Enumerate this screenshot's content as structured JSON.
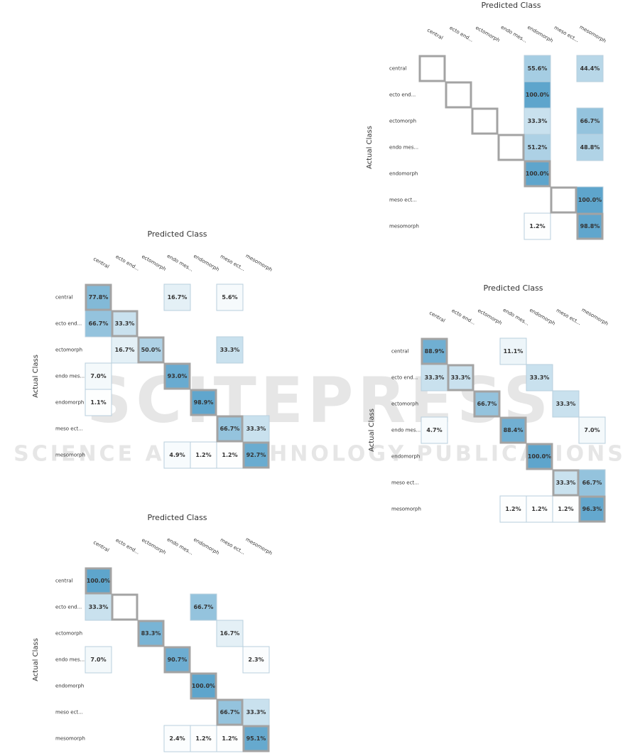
{
  "watermark": {
    "logo": "SCITEPRESS",
    "tagline": "SCIENCE AND TECHNOLOGY PUBLICATIONS"
  },
  "chart_data": [
    {
      "type": "heatmap",
      "title": "Predicted Class",
      "ylabel": "Actual Class",
      "color": "#5ea5cc",
      "x": [
        "central",
        "ecto end...",
        "ectomorph",
        "endo mes...",
        "endomorph",
        "meso ect...",
        "mesomorph"
      ],
      "y": [
        "central",
        "ecto end...",
        "ectomorph",
        "endo mes...",
        "endomorph",
        "meso ect...",
        "mesomorph"
      ],
      "values": [
        [
          null,
          null,
          null,
          null,
          55.6,
          null,
          44.4
        ],
        [
          null,
          null,
          null,
          null,
          100.0,
          null,
          null
        ],
        [
          null,
          null,
          null,
          null,
          33.3,
          null,
          66.7
        ],
        [
          null,
          null,
          null,
          null,
          51.2,
          null,
          48.8
        ],
        [
          null,
          null,
          null,
          null,
          100.0,
          null,
          null
        ],
        [
          null,
          null,
          null,
          null,
          null,
          null,
          100.0
        ],
        [
          null,
          null,
          null,
          null,
          1.2,
          null,
          98.8
        ]
      ],
      "value_labels": [
        [
          null,
          null,
          null,
          null,
          "55.6%",
          null,
          "44.4%"
        ],
        [
          null,
          null,
          null,
          null,
          "100.0%",
          null,
          null
        ],
        [
          null,
          null,
          null,
          null,
          "33.3%",
          null,
          "66.7%"
        ],
        [
          null,
          null,
          null,
          null,
          "51.2%",
          null,
          "48.8%"
        ],
        [
          null,
          null,
          null,
          null,
          "100.0%",
          null,
          null
        ],
        [
          null,
          null,
          null,
          null,
          null,
          null,
          "100.0%"
        ],
        [
          null,
          null,
          null,
          null,
          "1.2%",
          null,
          "98.8%"
        ]
      ]
    },
    {
      "type": "heatmap",
      "title": "Predicted Class",
      "ylabel": "Actual Class",
      "color": "#5ea5cc",
      "x": [
        "central",
        "ecto end...",
        "ectomorph",
        "endo mes...",
        "endomorph",
        "meso ect...",
        "mesomorph"
      ],
      "y": [
        "central",
        "ecto end...",
        "ectomorph",
        "endo mes...",
        "endomorph",
        "meso ect...",
        "mesomorph"
      ],
      "values": [
        [
          77.8,
          null,
          null,
          16.7,
          null,
          5.6,
          null
        ],
        [
          66.7,
          33.3,
          null,
          null,
          null,
          null,
          null
        ],
        [
          null,
          16.7,
          50.0,
          null,
          null,
          33.3,
          null
        ],
        [
          7.0,
          null,
          null,
          93.0,
          null,
          null,
          null
        ],
        [
          1.1,
          null,
          null,
          null,
          98.9,
          null,
          null
        ],
        [
          null,
          null,
          null,
          null,
          null,
          66.7,
          33.3
        ],
        [
          null,
          null,
          null,
          4.9,
          1.2,
          1.2,
          92.7
        ]
      ],
      "value_labels": [
        [
          "77.8%",
          null,
          null,
          "16.7%",
          null,
          "5.6%",
          null
        ],
        [
          "66.7%",
          "33.3%",
          null,
          null,
          null,
          null,
          null
        ],
        [
          null,
          "16.7%",
          "50.0%",
          null,
          null,
          "33.3%",
          null
        ],
        [
          "7.0%",
          null,
          null,
          "93.0%",
          null,
          null,
          null
        ],
        [
          "1.1%",
          null,
          null,
          null,
          "98.9%",
          null,
          null
        ],
        [
          null,
          null,
          null,
          null,
          null,
          "66.7%",
          "33.3%"
        ],
        [
          null,
          null,
          null,
          "4.9%",
          "1.2%",
          "1.2%",
          "92.7%"
        ]
      ]
    },
    {
      "type": "heatmap",
      "title": "Predicted Class",
      "ylabel": "Actual Class",
      "color": "#5ea5cc",
      "x": [
        "central",
        "ecto end...",
        "ectomorph",
        "endo mes...",
        "endomorph",
        "meso ect...",
        "mesomorph"
      ],
      "y": [
        "central",
        "ecto end...",
        "ectomorph",
        "endo mes...",
        "endomorph",
        "meso ect...",
        "mesomorph"
      ],
      "values": [
        [
          88.9,
          null,
          null,
          11.1,
          null,
          null,
          null
        ],
        [
          33.3,
          33.3,
          null,
          null,
          33.3,
          null,
          null
        ],
        [
          null,
          null,
          66.7,
          null,
          null,
          33.3,
          null
        ],
        [
          4.7,
          null,
          null,
          88.4,
          null,
          null,
          7.0
        ],
        [
          null,
          null,
          null,
          null,
          100.0,
          null,
          null
        ],
        [
          null,
          null,
          null,
          null,
          null,
          33.3,
          66.7
        ],
        [
          null,
          null,
          null,
          1.2,
          1.2,
          1.2,
          96.3
        ]
      ],
      "value_labels": [
        [
          "88.9%",
          null,
          null,
          "11.1%",
          null,
          null,
          null
        ],
        [
          "33.3%",
          "33.3%",
          null,
          null,
          "33.3%",
          null,
          null
        ],
        [
          null,
          null,
          "66.7%",
          null,
          null,
          "33.3%",
          null
        ],
        [
          "4.7%",
          null,
          null,
          "88.4%",
          null,
          null,
          "7.0%"
        ],
        [
          null,
          null,
          null,
          null,
          "100.0%",
          null,
          null
        ],
        [
          null,
          null,
          null,
          null,
          null,
          "33.3%",
          "66.7%"
        ],
        [
          null,
          null,
          null,
          "1.2%",
          "1.2%",
          "1.2%",
          "96.3%"
        ]
      ]
    },
    {
      "type": "heatmap",
      "title": "Predicted Class",
      "ylabel": "Actual Class",
      "color": "#5ea5cc",
      "x": [
        "central",
        "ecto end...",
        "ectomorph",
        "endo mes...",
        "endomorph",
        "meso ect...",
        "mesomorph"
      ],
      "y": [
        "central",
        "ecto end...",
        "ectomorph",
        "endo mes...",
        "endomorph",
        "meso ect...",
        "mesomorph"
      ],
      "values": [
        [
          100.0,
          null,
          null,
          null,
          null,
          null,
          null
        ],
        [
          33.3,
          null,
          null,
          null,
          66.7,
          null,
          null
        ],
        [
          null,
          null,
          83.3,
          null,
          null,
          16.7,
          null
        ],
        [
          7.0,
          null,
          null,
          90.7,
          null,
          null,
          2.3
        ],
        [
          null,
          null,
          null,
          null,
          100.0,
          null,
          null
        ],
        [
          null,
          null,
          null,
          null,
          null,
          66.7,
          33.3
        ],
        [
          null,
          null,
          null,
          2.4,
          1.2,
          1.2,
          95.1
        ]
      ],
      "value_labels": [
        [
          "100.0%",
          null,
          null,
          null,
          null,
          null,
          null
        ],
        [
          "33.3%",
          null,
          null,
          null,
          "66.7%",
          null,
          null
        ],
        [
          null,
          null,
          "83.3%",
          null,
          null,
          "16.7%",
          null
        ],
        [
          "7.0%",
          null,
          null,
          "90.7%",
          null,
          null,
          "2.3%"
        ],
        [
          null,
          null,
          null,
          null,
          "100.0%",
          null,
          null
        ],
        [
          null,
          null,
          null,
          null,
          null,
          "66.7%",
          "33.3%"
        ],
        [
          null,
          null,
          null,
          "2.4%",
          "1.2%",
          "1.2%",
          "95.1%"
        ]
      ]
    }
  ]
}
